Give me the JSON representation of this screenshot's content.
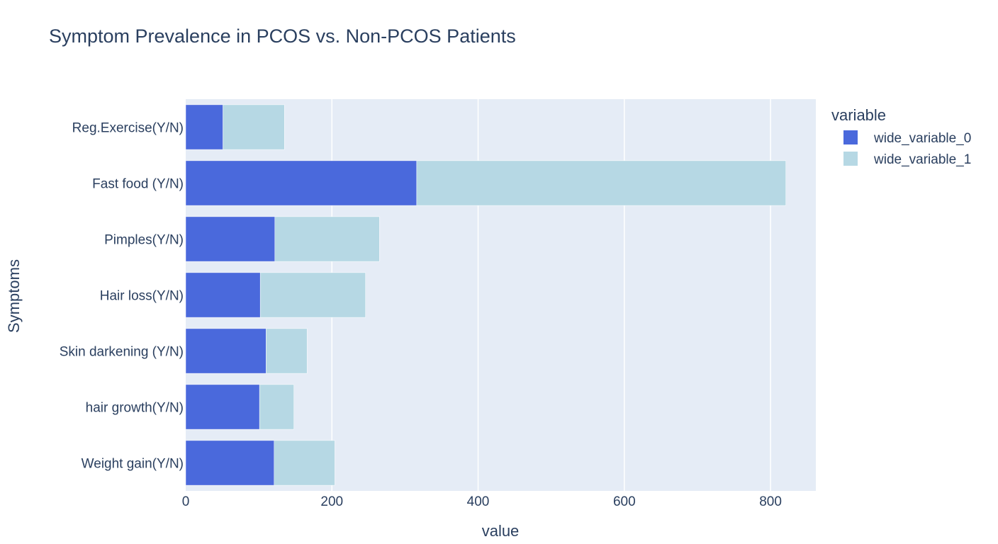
{
  "chart_data": {
    "type": "bar",
    "orientation": "horizontal",
    "barmode": "stack",
    "title": "Symptom Prevalence in PCOS vs. Non-PCOS Patients",
    "xlabel": "value",
    "ylabel": "Symptoms",
    "xlim": [
      0,
      862
    ],
    "xticks": [
      0,
      200,
      400,
      600,
      800
    ],
    "grid": true,
    "legend_title": "variable",
    "legend_position": "right",
    "categories": [
      "Reg.Exercise(Y/N)",
      "Fast food (Y/N)",
      "Pimples(Y/N)",
      "Hair loss(Y/N)",
      "Skin darkening (Y/N)",
      "hair growth(Y/N)",
      "Weight gain(Y/N)"
    ],
    "series": [
      {
        "name": "wide_variable_0",
        "color": "#4a69dc",
        "values": [
          51,
          316,
          122,
          102,
          110,
          101,
          121
        ]
      },
      {
        "name": "wide_variable_1",
        "color": "#b6d8e4",
        "values": [
          84,
          505,
          143,
          144,
          56,
          47,
          83
        ]
      }
    ],
    "plot_bg": "#e5ecf6",
    "grid_color": "#ffffff",
    "text_color": "#2a3f5f"
  }
}
